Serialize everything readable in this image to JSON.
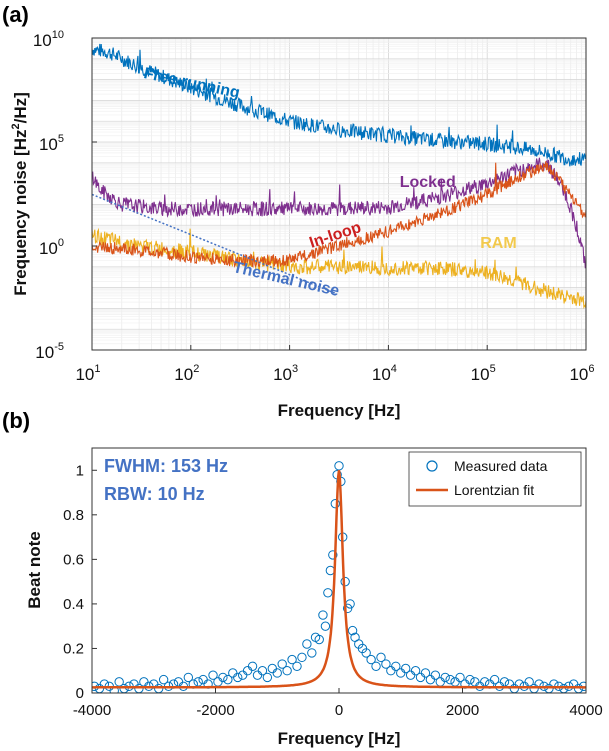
{
  "chart_data": [
    {
      "panel_label": "(a)",
      "type": "line",
      "xlabel": "Frequency [Hz]",
      "ylabel_base": "Frequency noise [Hz",
      "ylabel_sup": "2",
      "ylabel_tail": "/Hz]",
      "x_scale": "log",
      "y_scale": "log",
      "xlim": [
        10,
        1000000
      ],
      "ylim": [
        1e-05,
        10000000000
      ],
      "x_ticks": [
        {
          "base": "10",
          "exp": "1",
          "value": 10
        },
        {
          "base": "10",
          "exp": "2",
          "value": 100
        },
        {
          "base": "10",
          "exp": "3",
          "value": 1000
        },
        {
          "base": "10",
          "exp": "4",
          "value": 10000
        },
        {
          "base": "10",
          "exp": "5",
          "value": 100000
        },
        {
          "base": "10",
          "exp": "6",
          "value": 1000000
        }
      ],
      "y_ticks": [
        {
          "base": "10",
          "exp": "10",
          "value": 10000000000
        },
        {
          "base": "10",
          "exp": "5",
          "value": 100000
        },
        {
          "base": "10",
          "exp": "0",
          "value": 1
        },
        {
          "base": "10",
          "exp": "-5",
          "value": 1e-05
        }
      ],
      "grid": true,
      "series": [
        {
          "name": "Free running",
          "color": "#0072BD",
          "noise": 0.12,
          "x": [
            10,
            15,
            30,
            100,
            300,
            1000,
            3000,
            10000,
            30000,
            100000,
            300000,
            700000,
            1000000
          ],
          "y": [
            3000000000,
            2000000000,
            400000000,
            40000000,
            6000000,
            1000000,
            400000,
            200000,
            120000,
            80000,
            40000,
            15000,
            15000
          ]
        },
        {
          "name": "Locked",
          "color": "#7E2F8E",
          "noise": 0.12,
          "x": [
            10,
            12,
            20,
            50,
            100,
            300,
            1000,
            3000,
            10000,
            30000,
            100000,
            200000,
            400000,
            600000,
            800000,
            1000000
          ],
          "y": [
            3000,
            500,
            100,
            60,
            60,
            60,
            60,
            60,
            70,
            200,
            1000,
            4000,
            10000,
            500,
            10,
            0.1
          ]
        },
        {
          "name": "In-loop",
          "color": "#D95319",
          "noise": 0.1,
          "x": [
            10,
            30,
            100,
            300,
            1000,
            3000,
            10000,
            30000,
            100000,
            200000,
            400000,
            600000,
            1000000
          ],
          "y": [
            1,
            0.6,
            0.3,
            0.2,
            0.2,
            1,
            5,
            30,
            300,
            2000,
            8000,
            700,
            30
          ]
        },
        {
          "name": "RAM",
          "color": "#EDB120",
          "noise": 0.12,
          "x": [
            10,
            30,
            100,
            300,
            1000,
            3000,
            10000,
            30000,
            100000,
            300000,
            1000000
          ],
          "y": [
            3,
            1,
            0.5,
            0.2,
            0.1,
            0.1,
            0.09,
            0.09,
            0.05,
            0.01,
            0.002
          ]
        },
        {
          "name": "Thermal noise",
          "color": "#4472C4",
          "dotted": true,
          "noise": 0,
          "x": [
            10,
            3000
          ],
          "y": [
            300,
            0.005
          ]
        }
      ],
      "annotations": [
        {
          "text": "Free running",
          "color": "#0072BD",
          "x": 100,
          "y": 40000000,
          "rotate": 12
        },
        {
          "text": "Locked",
          "color": "#7E2F8E",
          "x": 25000,
          "y": 700,
          "rotate": 0
        },
        {
          "text": "In-loop",
          "color": "#CC1F1F",
          "x": 3000,
          "y": 2,
          "rotate": -18
        },
        {
          "text": "RAM",
          "color": "#F2C94C",
          "x": 130000,
          "y": 0.8,
          "rotate": 0
        },
        {
          "text": "Thermal noise",
          "color": "#4472C4",
          "x": 900,
          "y": 0.015,
          "rotate": 13
        }
      ]
    },
    {
      "panel_label": "(b)",
      "type": "scatter",
      "xlabel": "Frequency [Hz]",
      "ylabel": "Beat note",
      "xlim": [
        -4000,
        4000
      ],
      "ylim": [
        0,
        1.1
      ],
      "x_ticks": [
        -4000,
        -2000,
        0,
        2000,
        4000
      ],
      "y_ticks": [
        0,
        0.2,
        0.4,
        0.6,
        0.8,
        1
      ],
      "grid": false,
      "text_annotations": [
        "FWHM: 153 Hz",
        "RBW: 10 Hz"
      ],
      "annotation_color": "#4472C4",
      "legend_position": "top-right",
      "series": [
        {
          "name": "Measured data",
          "kind": "markers",
          "color": "#0072BD",
          "x": [
            -3960,
            -3880,
            -3800,
            -3720,
            -3640,
            -3560,
            -3480,
            -3400,
            -3320,
            -3240,
            -3160,
            -3080,
            -3000,
            -2920,
            -2840,
            -2760,
            -2680,
            -2600,
            -2520,
            -2440,
            -2360,
            -2280,
            -2200,
            -2120,
            -2040,
            -1960,
            -1880,
            -1800,
            -1720,
            -1640,
            -1560,
            -1480,
            -1400,
            -1320,
            -1240,
            -1160,
            -1080,
            -1000,
            -920,
            -840,
            -760,
            -680,
            -600,
            -520,
            -440,
            -380,
            -320,
            -260,
            -220,
            -180,
            -140,
            -100,
            -60,
            -30,
            0,
            30,
            60,
            100,
            140,
            180,
            220,
            260,
            320,
            380,
            440,
            520,
            600,
            680,
            760,
            840,
            920,
            1000,
            1080,
            1160,
            1240,
            1320,
            1400,
            1480,
            1560,
            1640,
            1720,
            1800,
            1880,
            1960,
            2040,
            2120,
            2200,
            2280,
            2360,
            2440,
            2520,
            2600,
            2680,
            2760,
            2840,
            2920,
            3000,
            3080,
            3160,
            3240,
            3320,
            3400,
            3480,
            3560,
            3640,
            3720,
            3800,
            3880,
            3960
          ],
          "y": [
            0.03,
            0.02,
            0.04,
            0.03,
            0.01,
            0.05,
            0.02,
            0.03,
            0.04,
            0.02,
            0.05,
            0.03,
            0.04,
            0.02,
            0.06,
            0.03,
            0.04,
            0.05,
            0.03,
            0.07,
            0.04,
            0.05,
            0.06,
            0.04,
            0.08,
            0.05,
            0.07,
            0.06,
            0.09,
            0.07,
            0.08,
            0.1,
            0.12,
            0.08,
            0.1,
            0.07,
            0.11,
            0.09,
            0.13,
            0.1,
            0.15,
            0.12,
            0.16,
            0.22,
            0.18,
            0.25,
            0.24,
            0.35,
            0.3,
            0.45,
            0.55,
            0.62,
            0.85,
            0.98,
            1.02,
            0.95,
            0.7,
            0.5,
            0.38,
            0.4,
            0.28,
            0.25,
            0.22,
            0.2,
            0.18,
            0.15,
            0.12,
            0.16,
            0.13,
            0.1,
            0.12,
            0.09,
            0.11,
            0.08,
            0.1,
            0.07,
            0.09,
            0.06,
            0.08,
            0.05,
            0.07,
            0.06,
            0.05,
            0.07,
            0.04,
            0.06,
            0.05,
            0.03,
            0.05,
            0.04,
            0.06,
            0.03,
            0.05,
            0.04,
            0.02,
            0.04,
            0.03,
            0.05,
            0.02,
            0.04,
            0.03,
            0.02,
            0.04,
            0.03,
            0.02,
            0.03,
            0.04,
            0.02,
            0.03
          ]
        },
        {
          "name": "Lorentzian fit",
          "kind": "line",
          "color": "#D95319",
          "center": 0,
          "fwhm": 153,
          "amplitude": 1.0,
          "offset": 0.025
        }
      ]
    }
  ]
}
